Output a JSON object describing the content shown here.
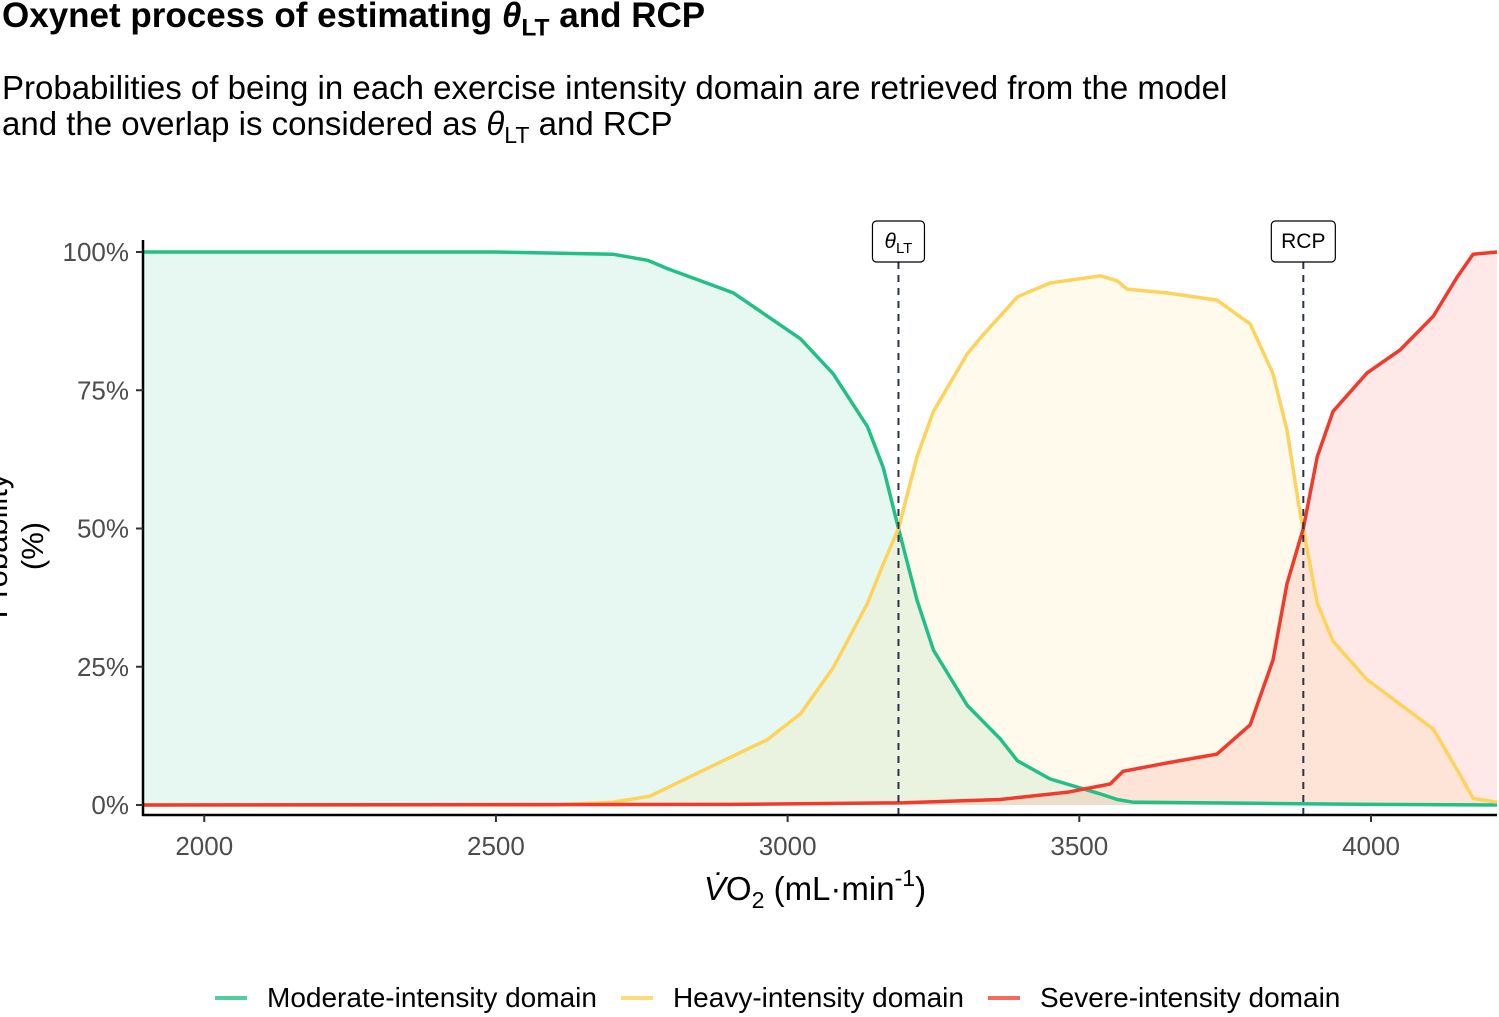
{
  "title": {
    "prefix": "Oxynet process of estimating ",
    "symbol": "θ",
    "sub": "LT",
    "suffix": " and RCP"
  },
  "subtitle": {
    "line1": "Probabilities of being in each exercise intensity domain are retrieved from the model",
    "line2_prefix": "and the overlap is considered as ",
    "symbol": "θ",
    "sub": "LT",
    "line2_suffix": " and RCP"
  },
  "chart_data": {
    "type": "area",
    "xlabel": {
      "v": "V̇",
      "o": "O",
      "sub": "2",
      "unit": " (mL·min",
      "sup": "-1",
      "close": ")"
    },
    "ylabel": "Probability (%)",
    "xlim": [
      1895,
      4216
    ],
    "ylim": [
      0,
      100
    ],
    "x_ticks": [
      2000,
      2500,
      3000,
      3500,
      4000
    ],
    "y_ticks": [
      0,
      25,
      50,
      75,
      100
    ],
    "y_tick_labels": [
      "0%",
      "25%",
      "50%",
      "75%",
      "100%"
    ],
    "grid": false,
    "legend_position": "bottom",
    "series": [
      {
        "name": "Moderate-intensity domain",
        "color": "#22BF86",
        "points": [
          [
            1895,
            100
          ],
          [
            2500,
            100
          ],
          [
            2700,
            99.6
          ],
          [
            2760,
            98.5
          ],
          [
            2794,
            97
          ],
          [
            2907,
            92.6
          ],
          [
            3022,
            84.3
          ],
          [
            3078,
            78
          ],
          [
            3137,
            68.4
          ],
          [
            3164,
            61
          ],
          [
            3190,
            50
          ],
          [
            3222,
            37
          ],
          [
            3250,
            28
          ],
          [
            3308,
            18
          ],
          [
            3364,
            12
          ],
          [
            3394,
            8
          ],
          [
            3450,
            4.7
          ],
          [
            3536,
            2
          ],
          [
            3565,
            1
          ],
          [
            3592,
            0.5
          ],
          [
            3800,
            0.3
          ],
          [
            4000,
            0.1
          ],
          [
            4216,
            0
          ]
        ]
      },
      {
        "name": "Heavy-intensity domain",
        "color": "#FDD35C",
        "points": [
          [
            1895,
            0
          ],
          [
            2600,
            0
          ],
          [
            2700,
            0.5
          ],
          [
            2764,
            1.6
          ],
          [
            2850,
            6
          ],
          [
            2965,
            11.8
          ],
          [
            3022,
            16.5
          ],
          [
            3078,
            24.8
          ],
          [
            3137,
            36.5
          ],
          [
            3164,
            43.6
          ],
          [
            3190,
            50
          ],
          [
            3222,
            63
          ],
          [
            3250,
            71.2
          ],
          [
            3308,
            81.6
          ],
          [
            3335,
            85
          ],
          [
            3394,
            91.9
          ],
          [
            3450,
            94.4
          ],
          [
            3536,
            95.7
          ],
          [
            3565,
            94.8
          ],
          [
            3582,
            93.3
          ],
          [
            3650,
            92.6
          ],
          [
            3736,
            91.3
          ],
          [
            3793,
            87
          ],
          [
            3832,
            78
          ],
          [
            3856,
            67.8
          ],
          [
            3879,
            52.4
          ],
          [
            3884,
            50
          ],
          [
            3908,
            36.5
          ],
          [
            3935,
            29.6
          ],
          [
            3993,
            22.7
          ],
          [
            4107,
            13.7
          ],
          [
            4153,
            5.4
          ],
          [
            4175,
            1.2
          ],
          [
            4216,
            0.5
          ]
        ]
      },
      {
        "name": "Severe-intensity domain",
        "color": "#F23A2C",
        "points": [
          [
            1895,
            0
          ],
          [
            2900,
            0.1
          ],
          [
            3200,
            0.4
          ],
          [
            3364,
            1
          ],
          [
            3479,
            2.3
          ],
          [
            3553,
            3.8
          ],
          [
            3575,
            6.1
          ],
          [
            3650,
            7.6
          ],
          [
            3736,
            9.2
          ],
          [
            3793,
            14.5
          ],
          [
            3832,
            26.2
          ],
          [
            3856,
            40
          ],
          [
            3884,
            50
          ],
          [
            3908,
            63
          ],
          [
            3935,
            71.2
          ],
          [
            3993,
            78.1
          ],
          [
            4050,
            82.3
          ],
          [
            4107,
            88.4
          ],
          [
            4148,
            95.5
          ],
          [
            4175,
            99.6
          ],
          [
            4216,
            100
          ]
        ]
      }
    ],
    "annotations": [
      {
        "x": 3190,
        "label_symbol": "θ",
        "label_sub": "LT"
      },
      {
        "x": 3884,
        "label": "RCP"
      }
    ]
  }
}
